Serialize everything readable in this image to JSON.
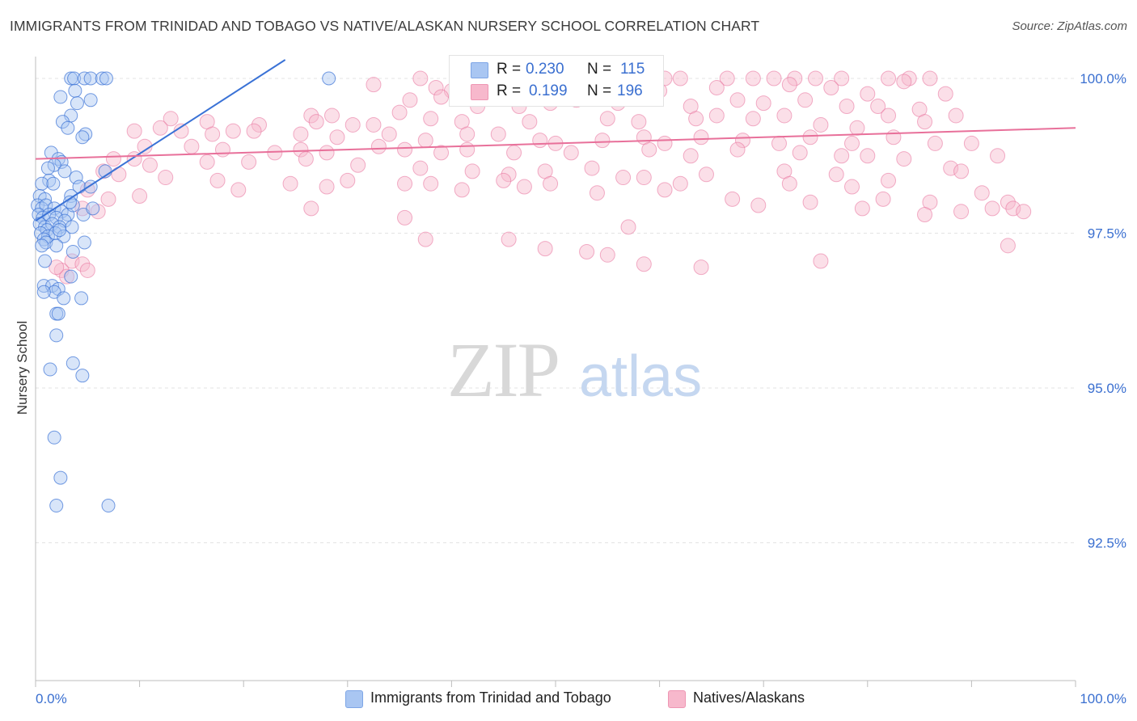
{
  "header": {
    "title": "IMMIGRANTS FROM TRINIDAD AND TOBAGO VS NATIVE/ALASKAN NURSERY SCHOOL CORRELATION CHART",
    "source": "Source: ZipAtlas.com"
  },
  "watermark": {
    "zip": "ZIP",
    "atlas": "atlas"
  },
  "stats": {
    "blue": {
      "r_label": "R =",
      "r_value": "0.230",
      "n_label": "N =",
      "n_value": "115"
    },
    "pink": {
      "r_label": "R =",
      "r_value": "0.199",
      "n_label": "N =",
      "n_value": "196"
    }
  },
  "legend": {
    "blue_label": "Immigrants from Trinidad and Tobago",
    "pink_label": "Natives/Alaskans"
  },
  "colors": {
    "blue": "#3a72d6",
    "blue_fill": "#a9c6f2",
    "pink": "#e8709a",
    "pink_fill": "#f7b8cc",
    "axis_text": "#3a6fd0",
    "grid": "#e3e3e3"
  },
  "chart_data": {
    "type": "scatter",
    "title": "IMMIGRANTS FROM TRINIDAD AND TOBAGO VS NATIVE/ALASKAN NURSERY SCHOOL CORRELATION CHART",
    "xlabel": "",
    "ylabel": "Nursery School",
    "xlim": [
      0,
      100
    ],
    "ylim": [
      90.3,
      100.35
    ],
    "x_tick_labels": [
      "0.0%",
      "100.0%"
    ],
    "y_ticks": [
      100.0,
      97.5,
      95.0,
      92.5
    ],
    "y_tick_labels": [
      "100.0%",
      "97.5%",
      "95.0%",
      "92.5%"
    ],
    "grid": true,
    "legend_position": "bottom",
    "series": [
      {
        "name": "Immigrants from Trinidad and Tobago",
        "color": "#3a72d6",
        "trend": {
          "x": [
            0,
            24
          ],
          "y": [
            97.7,
            100.3
          ]
        },
        "points": [
          [
            3.4,
            100.0
          ],
          [
            3.7,
            100.0
          ],
          [
            4.7,
            100.0
          ],
          [
            5.3,
            100.0
          ],
          [
            6.4,
            100.0
          ],
          [
            6.8,
            100.0
          ],
          [
            28.2,
            100.0
          ],
          [
            2.4,
            99.7
          ],
          [
            3.8,
            99.8
          ],
          [
            5.3,
            99.65
          ],
          [
            4.0,
            99.6
          ],
          [
            3.4,
            99.4
          ],
          [
            2.6,
            99.3
          ],
          [
            3.1,
            99.2
          ],
          [
            4.8,
            99.1
          ],
          [
            4.5,
            99.05
          ],
          [
            1.5,
            98.8
          ],
          [
            2.2,
            98.7
          ],
          [
            2.5,
            98.65
          ],
          [
            1.8,
            98.6
          ],
          [
            1.2,
            98.55
          ],
          [
            2.8,
            98.5
          ],
          [
            3.9,
            98.4
          ],
          [
            1.3,
            98.35
          ],
          [
            0.6,
            98.3
          ],
          [
            1.7,
            98.3
          ],
          [
            4.2,
            98.25
          ],
          [
            0.4,
            98.1
          ],
          [
            0.9,
            98.05
          ],
          [
            3.4,
            98.1
          ],
          [
            0.2,
            97.95
          ],
          [
            0.6,
            97.9
          ],
          [
            1.0,
            97.95
          ],
          [
            1.8,
            97.9
          ],
          [
            2.5,
            97.85
          ],
          [
            3.1,
            97.8
          ],
          [
            3.6,
            97.95
          ],
          [
            0.3,
            97.8
          ],
          [
            0.7,
            97.75
          ],
          [
            1.3,
            97.8
          ],
          [
            2.0,
            97.75
          ],
          [
            2.8,
            97.7
          ],
          [
            4.6,
            97.8
          ],
          [
            5.5,
            97.9
          ],
          [
            0.4,
            97.65
          ],
          [
            0.9,
            97.6
          ],
          [
            1.6,
            97.65
          ],
          [
            2.3,
            97.6
          ],
          [
            3.5,
            97.6
          ],
          [
            1.1,
            97.55
          ],
          [
            0.5,
            97.5
          ],
          [
            1.2,
            97.45
          ],
          [
            1.9,
            97.5
          ],
          [
            2.7,
            97.45
          ],
          [
            0.8,
            97.4
          ],
          [
            1.0,
            97.35
          ],
          [
            2.0,
            97.3
          ],
          [
            4.7,
            97.35
          ],
          [
            0.6,
            97.3
          ],
          [
            3.6,
            97.2
          ],
          [
            0.9,
            97.05
          ],
          [
            3.4,
            96.8
          ],
          [
            0.8,
            96.65
          ],
          [
            1.6,
            96.65
          ],
          [
            2.2,
            96.6
          ],
          [
            1.8,
            96.55
          ],
          [
            0.8,
            96.55
          ],
          [
            2.7,
            96.45
          ],
          [
            4.4,
            96.45
          ],
          [
            2.0,
            96.2
          ],
          [
            2.2,
            96.2
          ],
          [
            2.0,
            95.85
          ],
          [
            3.6,
            95.4
          ],
          [
            1.4,
            95.3
          ],
          [
            4.5,
            95.2
          ],
          [
            1.8,
            94.2
          ],
          [
            2.4,
            93.55
          ],
          [
            2.0,
            93.1
          ],
          [
            7.0,
            93.1
          ],
          [
            6.7,
            98.5
          ],
          [
            5.3,
            98.25
          ],
          [
            3.3,
            98.0
          ],
          [
            2.3,
            97.55
          ]
        ]
      },
      {
        "name": "Natives/Alaskans",
        "color": "#e8709a",
        "trend": {
          "x": [
            0,
            100
          ],
          "y": [
            98.7,
            99.2
          ]
        },
        "points": [
          [
            37.0,
            100.0
          ],
          [
            51.0,
            100.0
          ],
          [
            55.5,
            100.0
          ],
          [
            59.0,
            100.0
          ],
          [
            60.5,
            100.0
          ],
          [
            62.0,
            100.0
          ],
          [
            66.5,
            100.0
          ],
          [
            69.0,
            100.0
          ],
          [
            71.0,
            100.0
          ],
          [
            73.0,
            100.0
          ],
          [
            75.0,
            100.0
          ],
          [
            77.5,
            100.0
          ],
          [
            82.0,
            100.0
          ],
          [
            84.0,
            100.0
          ],
          [
            86.0,
            100.0
          ],
          [
            32.5,
            99.9
          ],
          [
            38.5,
            99.85
          ],
          [
            40.0,
            99.8
          ],
          [
            44.5,
            99.95
          ],
          [
            52.5,
            99.9
          ],
          [
            57.5,
            99.9
          ],
          [
            60.0,
            99.8
          ],
          [
            65.5,
            99.85
          ],
          [
            72.5,
            99.9
          ],
          [
            76.5,
            99.85
          ],
          [
            80.0,
            99.75
          ],
          [
            83.5,
            99.95
          ],
          [
            87.5,
            99.75
          ],
          [
            36.0,
            99.65
          ],
          [
            39.0,
            99.7
          ],
          [
            42.5,
            99.55
          ],
          [
            46.5,
            99.55
          ],
          [
            49.5,
            99.6
          ],
          [
            52.0,
            99.65
          ],
          [
            56.0,
            99.6
          ],
          [
            63.0,
            99.55
          ],
          [
            67.5,
            99.65
          ],
          [
            70.0,
            99.6
          ],
          [
            74.0,
            99.65
          ],
          [
            78.0,
            99.55
          ],
          [
            81.0,
            99.55
          ],
          [
            85.0,
            99.5
          ],
          [
            26.5,
            99.4
          ],
          [
            28.5,
            99.4
          ],
          [
            35.0,
            99.45
          ],
          [
            38.0,
            99.35
          ],
          [
            41.0,
            99.3
          ],
          [
            47.5,
            99.3
          ],
          [
            55.0,
            99.35
          ],
          [
            58.0,
            99.3
          ],
          [
            63.5,
            99.35
          ],
          [
            65.5,
            99.4
          ],
          [
            69.0,
            99.35
          ],
          [
            72.0,
            99.4
          ],
          [
            75.5,
            99.25
          ],
          [
            79.0,
            99.2
          ],
          [
            82.0,
            99.4
          ],
          [
            85.5,
            99.3
          ],
          [
            88.5,
            99.4
          ],
          [
            13.0,
            99.35
          ],
          [
            16.5,
            99.3
          ],
          [
            21.5,
            99.25
          ],
          [
            27.0,
            99.3
          ],
          [
            30.5,
            99.25
          ],
          [
            32.5,
            99.25
          ],
          [
            9.5,
            99.15
          ],
          [
            12.0,
            99.2
          ],
          [
            14.0,
            99.15
          ],
          [
            17.0,
            99.1
          ],
          [
            19.0,
            99.15
          ],
          [
            21.0,
            99.15
          ],
          [
            25.5,
            99.1
          ],
          [
            29.0,
            99.05
          ],
          [
            34.0,
            99.1
          ],
          [
            37.5,
            99.0
          ],
          [
            41.5,
            99.1
          ],
          [
            44.5,
            99.1
          ],
          [
            48.5,
            99.0
          ],
          [
            50.0,
            98.95
          ],
          [
            54.5,
            99.0
          ],
          [
            58.5,
            99.05
          ],
          [
            60.5,
            98.95
          ],
          [
            64.0,
            99.05
          ],
          [
            68.0,
            99.0
          ],
          [
            71.5,
            98.95
          ],
          [
            74.5,
            99.05
          ],
          [
            78.5,
            98.95
          ],
          [
            82.5,
            99.05
          ],
          [
            86.5,
            98.95
          ],
          [
            90.0,
            98.95
          ],
          [
            92.5,
            98.75
          ],
          [
            10.5,
            98.9
          ],
          [
            15.0,
            98.9
          ],
          [
            18.0,
            98.85
          ],
          [
            23.0,
            98.8
          ],
          [
            25.5,
            98.85
          ],
          [
            28.0,
            98.8
          ],
          [
            33.0,
            98.9
          ],
          [
            35.5,
            98.85
          ],
          [
            39.0,
            98.8
          ],
          [
            41.5,
            98.85
          ],
          [
            46.0,
            98.8
          ],
          [
            51.5,
            98.8
          ],
          [
            59.0,
            98.85
          ],
          [
            63.0,
            98.75
          ],
          [
            67.5,
            98.85
          ],
          [
            73.5,
            98.8
          ],
          [
            77.5,
            98.75
          ],
          [
            80.0,
            98.75
          ],
          [
            83.5,
            98.7
          ],
          [
            7.5,
            98.7
          ],
          [
            9.5,
            98.7
          ],
          [
            11.0,
            98.6
          ],
          [
            16.5,
            98.65
          ],
          [
            20.5,
            98.65
          ],
          [
            26.0,
            98.7
          ],
          [
            31.0,
            98.6
          ],
          [
            37.0,
            98.55
          ],
          [
            42.0,
            98.5
          ],
          [
            45.5,
            98.45
          ],
          [
            49.0,
            98.5
          ],
          [
            53.5,
            98.55
          ],
          [
            58.5,
            98.4
          ],
          [
            64.5,
            98.45
          ],
          [
            72.0,
            98.5
          ],
          [
            77.0,
            98.45
          ],
          [
            82.0,
            98.35
          ],
          [
            88.0,
            98.55
          ],
          [
            89.0,
            98.5
          ],
          [
            6.5,
            98.5
          ],
          [
            8.0,
            98.45
          ],
          [
            12.5,
            98.4
          ],
          [
            17.5,
            98.35
          ],
          [
            24.5,
            98.3
          ],
          [
            30.0,
            98.35
          ],
          [
            38.0,
            98.3
          ],
          [
            45.0,
            98.35
          ],
          [
            49.5,
            98.3
          ],
          [
            56.5,
            98.4
          ],
          [
            62.0,
            98.3
          ],
          [
            72.5,
            98.3
          ],
          [
            78.5,
            98.25
          ],
          [
            19.5,
            98.2
          ],
          [
            28.0,
            98.25
          ],
          [
            35.5,
            98.3
          ],
          [
            41.0,
            98.2
          ],
          [
            47.0,
            98.25
          ],
          [
            54.0,
            98.15
          ],
          [
            60.5,
            98.2
          ],
          [
            67.0,
            98.05
          ],
          [
            74.5,
            98.0
          ],
          [
            81.5,
            98.05
          ],
          [
            86.0,
            98.0
          ],
          [
            91.0,
            98.15
          ],
          [
            93.5,
            98.0
          ],
          [
            5.0,
            98.2
          ],
          [
            7.0,
            98.05
          ],
          [
            10.0,
            98.1
          ],
          [
            4.5,
            97.9
          ],
          [
            6.0,
            97.85
          ],
          [
            26.5,
            97.9
          ],
          [
            35.5,
            97.75
          ],
          [
            57.0,
            97.6
          ],
          [
            69.5,
            97.95
          ],
          [
            79.5,
            97.9
          ],
          [
            85.5,
            97.8
          ],
          [
            89.0,
            97.85
          ],
          [
            92.0,
            97.9
          ],
          [
            94.0,
            97.9
          ],
          [
            95.0,
            97.85
          ],
          [
            37.5,
            97.4
          ],
          [
            45.5,
            97.4
          ],
          [
            49.0,
            97.25
          ],
          [
            53.0,
            97.2
          ],
          [
            55.0,
            97.15
          ],
          [
            58.5,
            97.0
          ],
          [
            75.5,
            97.05
          ],
          [
            93.5,
            97.3
          ],
          [
            64.0,
            96.95
          ],
          [
            3.5,
            97.05
          ],
          [
            4.5,
            97.0
          ],
          [
            2.5,
            96.9
          ],
          [
            5.0,
            96.9
          ],
          [
            3.0,
            96.8
          ],
          [
            2.0,
            96.95
          ]
        ]
      }
    ]
  }
}
